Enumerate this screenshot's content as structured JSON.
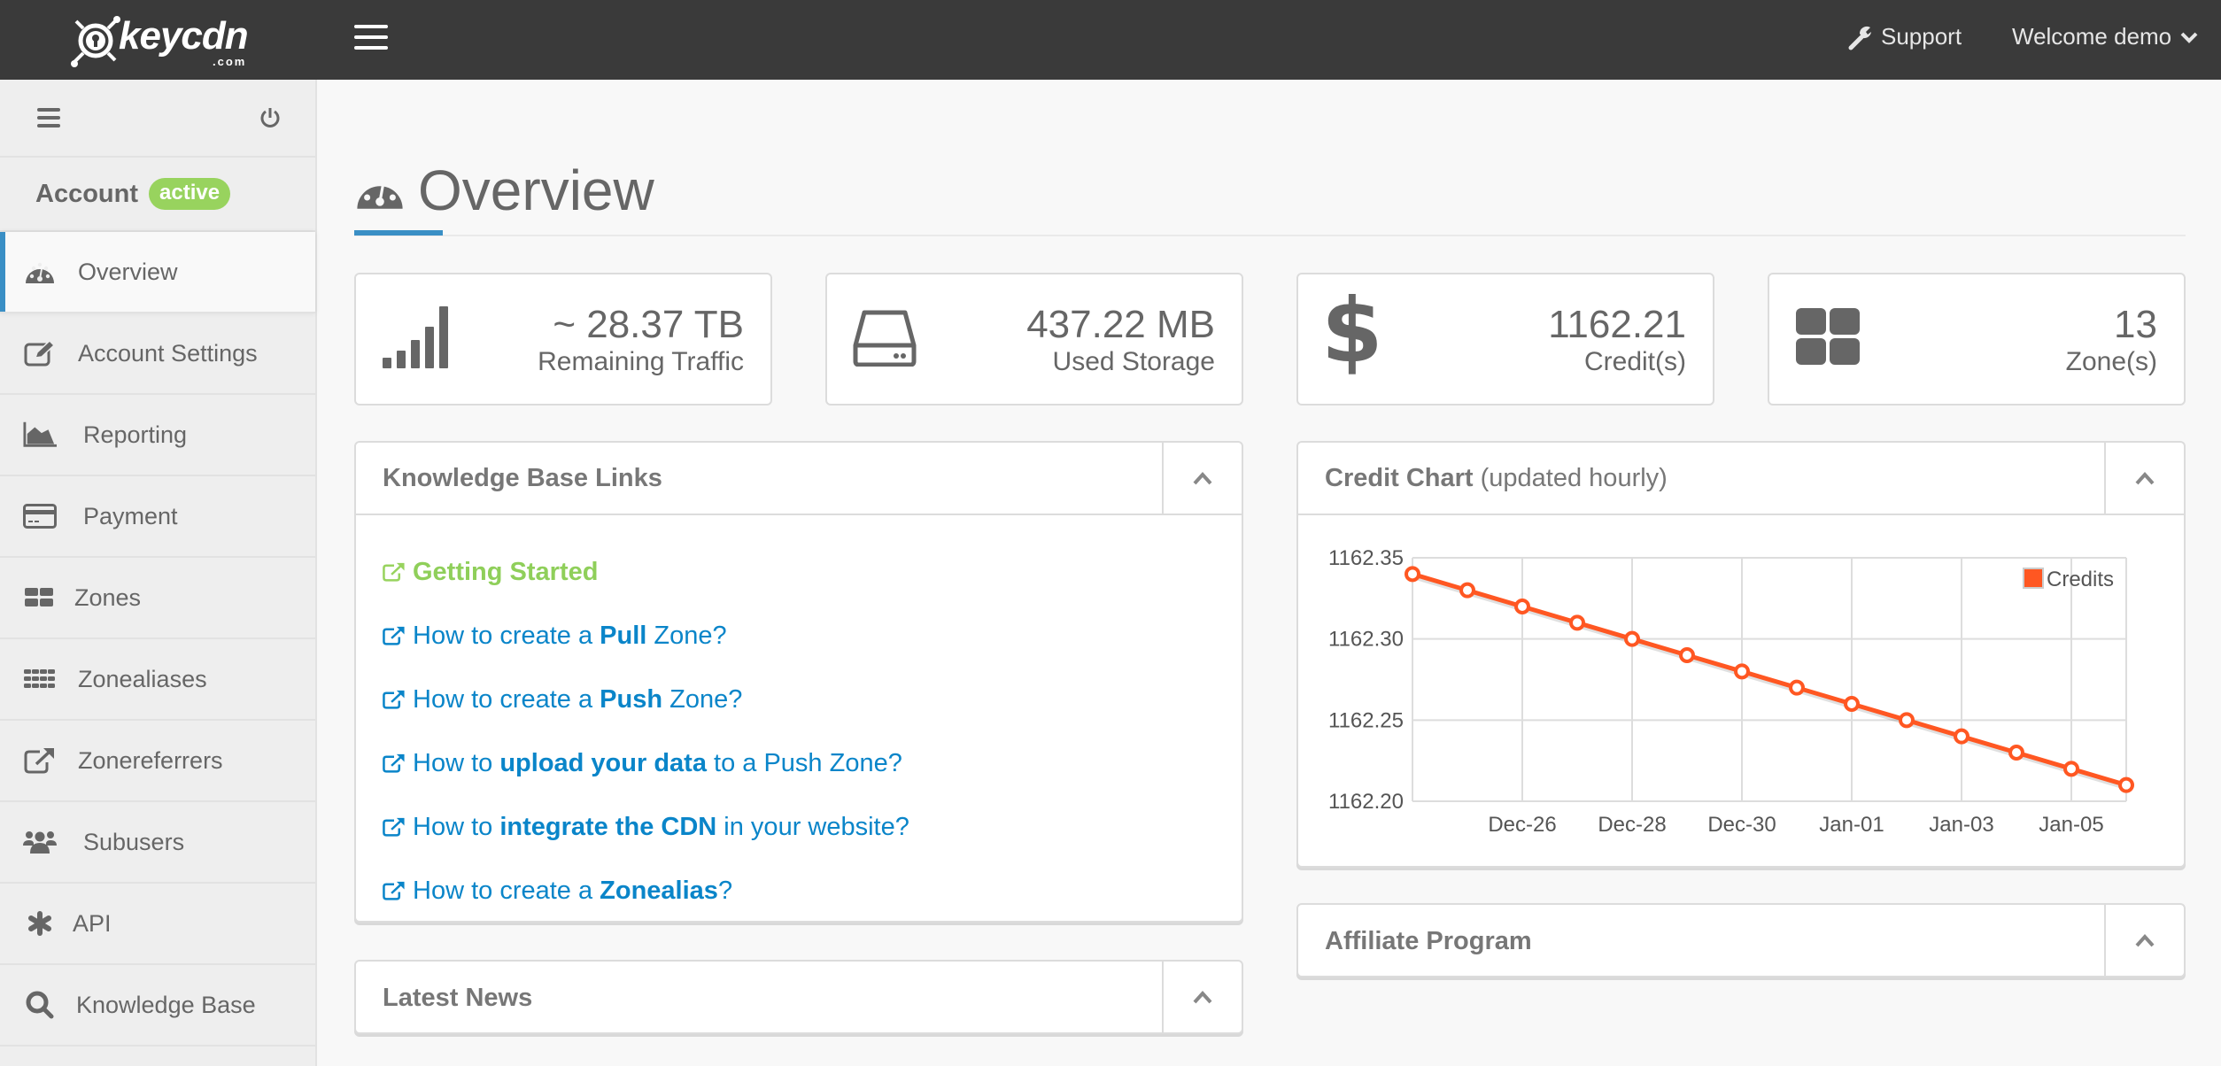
{
  "topbar": {
    "logo_text": "keycdn",
    "logo_suffix": ".com",
    "support_label": "Support",
    "user_menu_label": "Welcome demo"
  },
  "sidebar": {
    "account_label": "Account",
    "account_status": "active",
    "items": [
      {
        "label": "Overview",
        "icon": "dashboard-icon",
        "active": true
      },
      {
        "label": "Account Settings",
        "icon": "edit-icon"
      },
      {
        "label": "Reporting",
        "icon": "area-chart-icon"
      },
      {
        "label": "Payment",
        "icon": "credit-card-icon"
      },
      {
        "label": "Zones",
        "icon": "grid-icon"
      },
      {
        "label": "Zonealiases",
        "icon": "grid-small-icon"
      },
      {
        "label": "Zonereferrers",
        "icon": "external-link-icon"
      },
      {
        "label": "Subusers",
        "icon": "users-icon"
      },
      {
        "label": "API",
        "icon": "asterisk-icon"
      },
      {
        "label": "Knowledge Base",
        "icon": "search-icon"
      }
    ]
  },
  "page": {
    "title": "Overview"
  },
  "stats": [
    {
      "value": "~ 28.37 TB",
      "label": "Remaining Traffic",
      "icon": "signal-icon"
    },
    {
      "value": "437.22 MB",
      "label": "Used Storage",
      "icon": "hdd-icon"
    },
    {
      "value": "1162.21",
      "label": "Credit(s)",
      "icon": "dollar-icon"
    },
    {
      "value": "13",
      "label": "Zone(s)",
      "icon": "grid-icon"
    }
  ],
  "kb_panel": {
    "title": "Knowledge Base Links",
    "links": [
      {
        "parts": [
          {
            "t": "Getting Started",
            "b": false
          }
        ],
        "green": true
      },
      {
        "parts": [
          {
            "t": "How to create a ",
            "b": false
          },
          {
            "t": "Pull",
            "b": true
          },
          {
            "t": " Zone?",
            "b": false
          }
        ]
      },
      {
        "parts": [
          {
            "t": "How to create a ",
            "b": false
          },
          {
            "t": "Push",
            "b": true
          },
          {
            "t": " Zone?",
            "b": false
          }
        ]
      },
      {
        "parts": [
          {
            "t": "How to ",
            "b": false
          },
          {
            "t": "upload your data",
            "b": true
          },
          {
            "t": " to a Push Zone?",
            "b": false
          }
        ]
      },
      {
        "parts": [
          {
            "t": "How to ",
            "b": false
          },
          {
            "t": "integrate the CDN",
            "b": true
          },
          {
            "t": " in your website?",
            "b": false
          }
        ]
      },
      {
        "parts": [
          {
            "t": "How to create a ",
            "b": false
          },
          {
            "t": "Zonealias",
            "b": true
          },
          {
            "t": "?",
            "b": false
          }
        ]
      }
    ]
  },
  "news_panel": {
    "title": "Latest News"
  },
  "credit_panel": {
    "title": "Credit Chart",
    "subtitle": "(updated hourly)"
  },
  "affiliate_panel": {
    "title": "Affiliate Program"
  },
  "colors": {
    "accent": "#3a8fc5",
    "link": "#0a85c9",
    "success": "#98d35e",
    "series": "#ff5722",
    "topbar": "#3a3a3a"
  },
  "chart_data": {
    "type": "line",
    "title": "Credit Chart (updated hourly)",
    "xlabel": "",
    "ylabel": "",
    "x": [
      "Dec-24",
      "Dec-25",
      "Dec-26",
      "Dec-27",
      "Dec-28",
      "Dec-29",
      "Dec-30",
      "Dec-31",
      "Jan-01",
      "Jan-02",
      "Jan-03",
      "Jan-04",
      "Jan-05",
      "Jan-06"
    ],
    "x_tick_labels": [
      "Dec-26",
      "Dec-28",
      "Dec-30",
      "Jan-01",
      "Jan-03",
      "Jan-05"
    ],
    "series": [
      {
        "name": "Credits",
        "color": "#ff5722",
        "values": [
          1162.34,
          1162.33,
          1162.32,
          1162.31,
          1162.3,
          1162.29,
          1162.28,
          1162.27,
          1162.26,
          1162.25,
          1162.24,
          1162.23,
          1162.22,
          1162.21
        ]
      }
    ],
    "y_ticks": [
      "1162.35",
      "1162.30",
      "1162.25",
      "1162.20"
    ],
    "ylim": [
      1162.2,
      1162.35
    ],
    "grid": true,
    "legend_position": "top-right"
  }
}
